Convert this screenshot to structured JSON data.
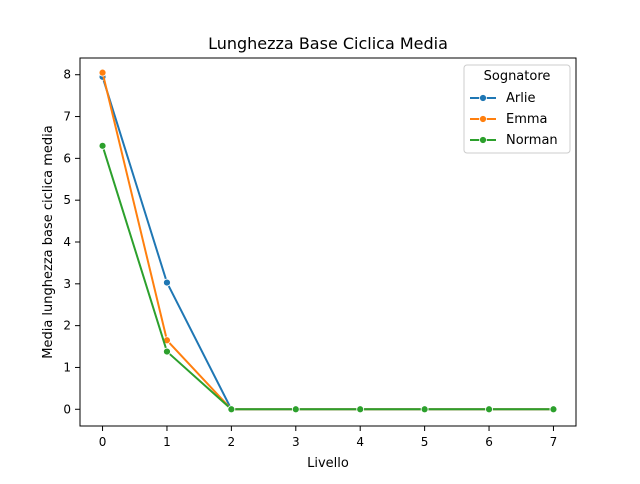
{
  "chart_data": {
    "type": "line",
    "title": "Lunghezza Base Ciclica Media",
    "xlabel": "Livello",
    "ylabel": "Media lunghezza base ciclica media",
    "x": [
      0,
      1,
      2,
      3,
      4,
      5,
      6,
      7
    ],
    "xlim": [
      -0.35,
      7.35
    ],
    "ylim": [
      -0.4,
      8.4
    ],
    "xticks": [
      "0",
      "1",
      "2",
      "3",
      "4",
      "5",
      "6",
      "7"
    ],
    "yticks": [
      "0",
      "1",
      "2",
      "3",
      "4",
      "5",
      "6",
      "7",
      "8"
    ],
    "grid": false,
    "legend": {
      "title": "Sognatore",
      "placement": "top-right"
    },
    "series": [
      {
        "name": "Arlie",
        "color": "#1f77b4",
        "values": [
          7.95,
          3.03,
          0,
          0,
          0,
          0,
          0,
          0
        ]
      },
      {
        "name": "Emma",
        "color": "#ff7f0e",
        "values": [
          8.05,
          1.65,
          0,
          0,
          0,
          0,
          0,
          0
        ]
      },
      {
        "name": "Norman",
        "color": "#2ca02c",
        "values": [
          6.3,
          1.38,
          0,
          0,
          0,
          0,
          0,
          0
        ]
      }
    ]
  }
}
